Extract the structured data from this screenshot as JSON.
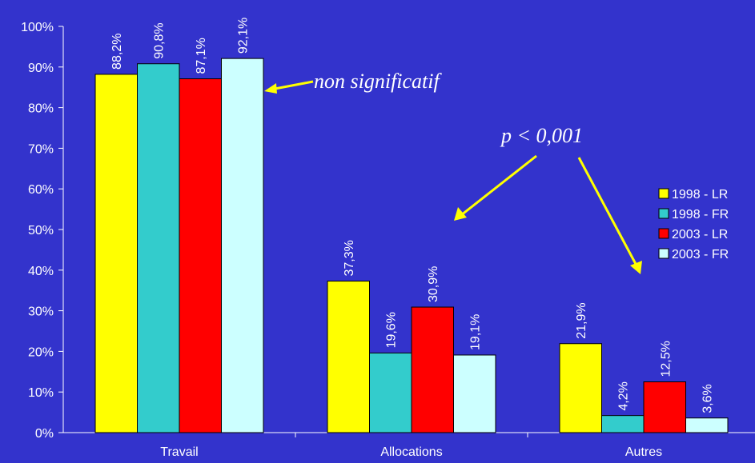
{
  "chart_data": {
    "type": "bar",
    "categories": [
      "Travail",
      "Allocations",
      "Autres"
    ],
    "series": [
      {
        "name": "1998 - LR",
        "color": "#ffff00",
        "values": [
          88.2,
          37.3,
          21.9
        ],
        "labels": [
          "88,2%",
          "37,3%",
          "21,9%"
        ]
      },
      {
        "name": "1998 - FR",
        "color": "#33cccc",
        "values": [
          90.8,
          19.6,
          4.2
        ],
        "labels": [
          "90,8%",
          "19,6%",
          "4,2%"
        ]
      },
      {
        "name": "2003 - LR",
        "color": "#ff0000",
        "values": [
          87.1,
          30.9,
          12.5
        ],
        "labels": [
          "87,1%",
          "30,9%",
          "12,5%"
        ]
      },
      {
        "name": "2003 - FR",
        "color": "#ccffff",
        "values": [
          92.1,
          19.1,
          3.6
        ],
        "labels": [
          "92,1%",
          "19,1%",
          "3,6%"
        ]
      }
    ],
    "yticks": [
      "0%",
      "10%",
      "20%",
      "30%",
      "40%",
      "50%",
      "60%",
      "70%",
      "80%",
      "90%",
      "100%"
    ],
    "ylim": [
      0,
      100
    ],
    "grid": false,
    "legend_position": "right",
    "annotations": {
      "non_significatif": "non significatif",
      "p_value": "p < 0,001"
    },
    "colors": {
      "background": "#3333cc",
      "arrow": "#ffff00",
      "axis": "#ffffff",
      "bar_outline": "#000000"
    }
  }
}
